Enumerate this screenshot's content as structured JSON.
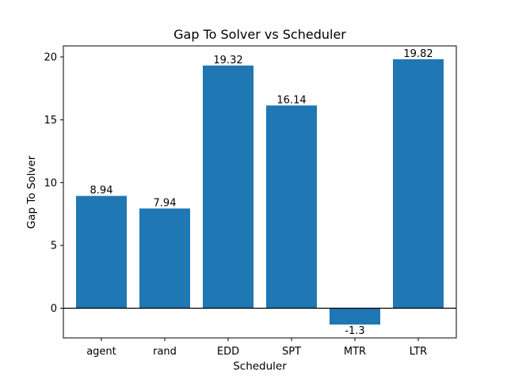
{
  "chart_data": {
    "type": "bar",
    "title": "Gap To Solver vs Scheduler",
    "xlabel": "Scheduler",
    "ylabel": "Gap To Solver",
    "categories": [
      "agent",
      "rand",
      "EDD",
      "SPT",
      "MTR",
      "LTR"
    ],
    "values": [
      8.94,
      7.94,
      19.32,
      16.14,
      -1.3,
      19.82
    ],
    "data_labels": [
      "8.94",
      "7.94",
      "19.32",
      "16.14",
      "-1.3",
      "19.82"
    ],
    "ylim": [
      -2.36,
      20.88
    ],
    "yticks": [
      0,
      5,
      10,
      15,
      20
    ],
    "ytick_labels": [
      "0",
      "5",
      "10",
      "15",
      "20"
    ],
    "grid": false,
    "zero_line": true,
    "bar_color": "#1f77b4"
  }
}
